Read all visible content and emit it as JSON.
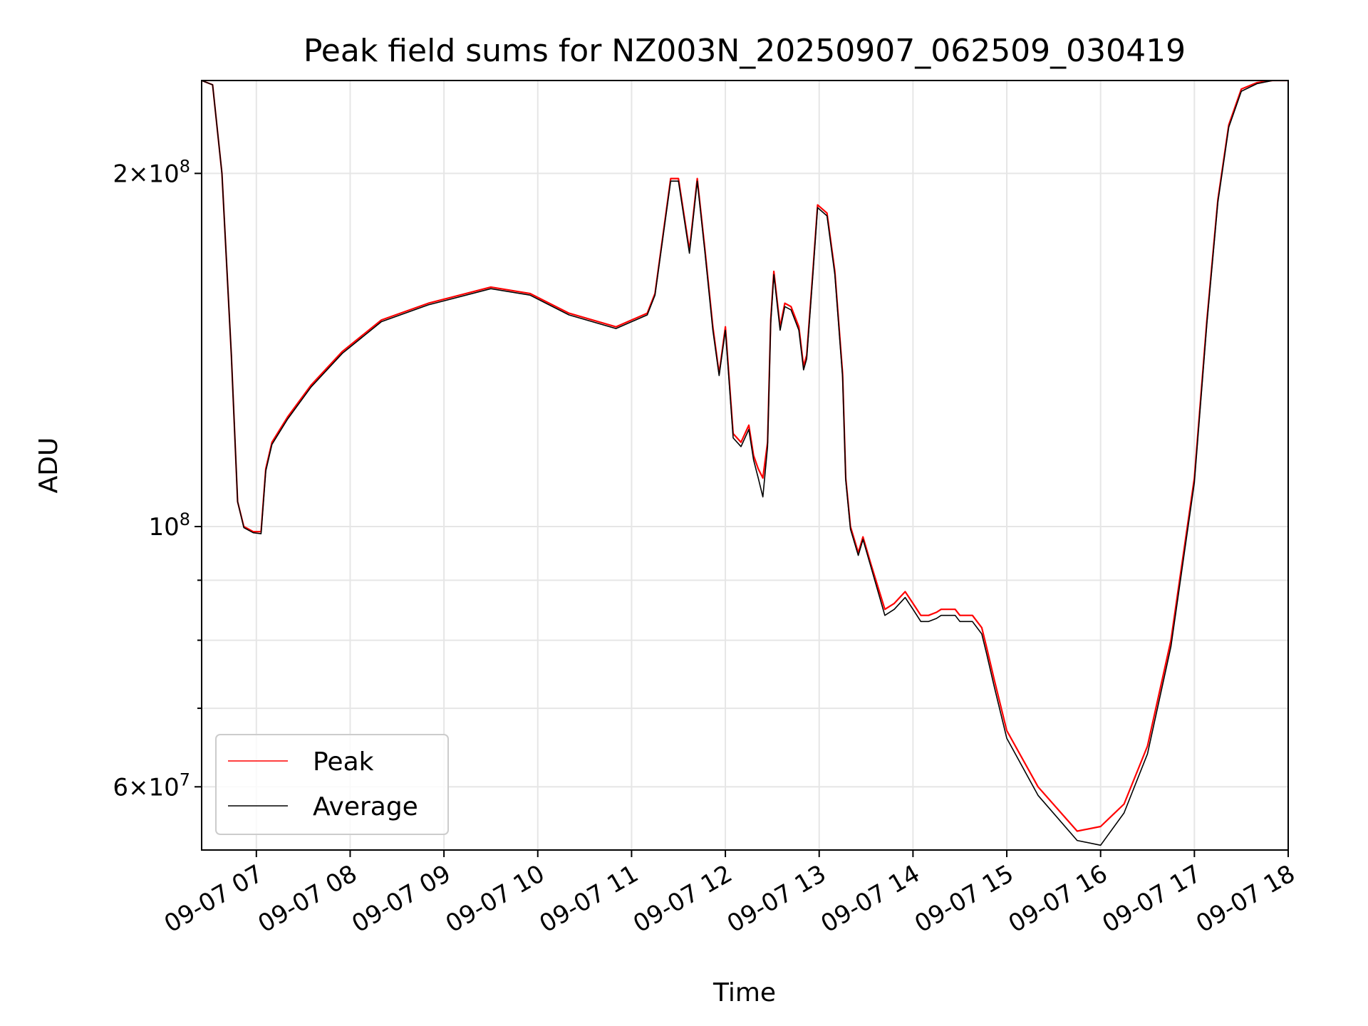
{
  "chart_data": {
    "type": "line",
    "title": "Peak field sums for NZ003N_20250907_062509_030419",
    "xlabel": "Time",
    "ylabel": "ADU",
    "x_scale": "time",
    "y_scale": "log",
    "xlim": [
      "2025-09-07 06:25",
      "2025-09-07 18:00"
    ],
    "ylim": [
      53000000,
      240000000
    ],
    "grid": true,
    "legend_position": "lower-left",
    "x_ticks": [
      "09-07 07",
      "09-07 08",
      "09-07 09",
      "09-07 10",
      "09-07 11",
      "09-07 12",
      "09-07 13",
      "09-07 14",
      "09-07 15",
      "09-07 16",
      "09-07 17",
      "09-07 18"
    ],
    "x_tick_values": [
      "2025-09-07 07:00",
      "2025-09-07 08:00",
      "2025-09-07 09:00",
      "2025-09-07 10:00",
      "2025-09-07 11:00",
      "2025-09-07 12:00",
      "2025-09-07 13:00",
      "2025-09-07 14:00",
      "2025-09-07 15:00",
      "2025-09-07 16:00",
      "2025-09-07 17:00",
      "2025-09-07 18:00"
    ],
    "y_major_ticks": [
      {
        "value": 200000000,
        "mantissa": "2",
        "base": "10",
        "exp": "8"
      },
      {
        "value": 100000000,
        "mantissa": "",
        "base": "10",
        "exp": "8"
      },
      {
        "value": 60000000,
        "mantissa": "6",
        "base": "10",
        "exp": "7"
      }
    ],
    "y_minor_ticks": [
      70000000,
      80000000,
      90000000
    ],
    "series": [
      {
        "name": "Peak",
        "color": "#ff0000",
        "x": [
          "2025-09-07 06:25",
          "2025-09-07 06:32",
          "2025-09-07 06:38",
          "2025-09-07 06:44",
          "2025-09-07 06:48",
          "2025-09-07 06:52",
          "2025-09-07 06:58",
          "2025-09-07 07:03",
          "2025-09-07 07:06",
          "2025-09-07 07:10",
          "2025-09-07 07:20",
          "2025-09-07 07:35",
          "2025-09-07 07:55",
          "2025-09-07 08:20",
          "2025-09-07 08:50",
          "2025-09-07 09:30",
          "2025-09-07 09:55",
          "2025-09-07 10:20",
          "2025-09-07 10:50",
          "2025-09-07 11:10",
          "2025-09-07 11:15",
          "2025-09-07 11:25",
          "2025-09-07 11:30",
          "2025-09-07 11:37",
          "2025-09-07 11:42",
          "2025-09-07 11:47",
          "2025-09-07 11:52",
          "2025-09-07 11:56",
          "2025-09-07 12:00",
          "2025-09-07 12:05",
          "2025-09-07 12:10",
          "2025-09-07 12:15",
          "2025-09-07 12:18",
          "2025-09-07 12:21",
          "2025-09-07 12:24",
          "2025-09-07 12:27",
          "2025-09-07 12:29",
          "2025-09-07 12:31",
          "2025-09-07 12:35",
          "2025-09-07 12:38",
          "2025-09-07 12:42",
          "2025-09-07 12:47",
          "2025-09-07 12:50",
          "2025-09-07 12:52",
          "2025-09-07 12:56",
          "2025-09-07 12:59",
          "2025-09-07 13:05",
          "2025-09-07 13:10",
          "2025-09-07 13:15",
          "2025-09-07 13:17",
          "2025-09-07 13:20",
          "2025-09-07 13:25",
          "2025-09-07 13:28",
          "2025-09-07 13:33",
          "2025-09-07 13:42",
          "2025-09-07 13:48",
          "2025-09-07 13:55",
          "2025-09-07 14:00",
          "2025-09-07 14:05",
          "2025-09-07 14:10",
          "2025-09-07 14:15",
          "2025-09-07 14:18",
          "2025-09-07 14:22",
          "2025-09-07 14:27",
          "2025-09-07 14:30",
          "2025-09-07 14:38",
          "2025-09-07 14:44",
          "2025-09-07 14:47",
          "2025-09-07 14:52",
          "2025-09-07 15:00",
          "2025-09-07 15:20",
          "2025-09-07 15:45",
          "2025-09-07 16:00",
          "2025-09-07 16:15",
          "2025-09-07 16:30",
          "2025-09-07 16:45",
          "2025-09-07 17:00",
          "2025-09-07 17:08",
          "2025-09-07 17:15",
          "2025-09-07 17:22",
          "2025-09-07 17:30",
          "2025-09-07 17:40",
          "2025-09-07 17:50",
          "2025-09-07 17:55",
          "2025-09-07 18:00"
        ],
        "y": [
          240000000,
          238000000,
          200000000,
          140000000,
          105000000,
          100000000,
          99000000,
          99000000,
          112000000,
          118000000,
          124000000,
          132000000,
          141000000,
          150000000,
          155000000,
          160000000,
          158000000,
          152000000,
          148000000,
          152000000,
          158000000,
          198000000,
          198000000,
          172000000,
          198000000,
          172000000,
          148000000,
          135000000,
          148000000,
          120000000,
          118000000,
          122000000,
          115000000,
          112000000,
          110000000,
          118000000,
          150000000,
          165000000,
          148000000,
          155000000,
          154000000,
          148000000,
          137000000,
          140000000,
          165000000,
          188000000,
          185000000,
          165000000,
          135000000,
          110000000,
          100000000,
          95000000,
          98000000,
          93000000,
          85000000,
          86000000,
          88000000,
          86000000,
          84000000,
          84000000,
          84500000,
          85000000,
          85000000,
          85000000,
          84000000,
          84000000,
          82000000,
          79000000,
          74000000,
          67000000,
          60000000,
          55000000,
          55500000,
          58000000,
          65000000,
          80000000,
          110000000,
          150000000,
          190000000,
          220000000,
          236000000,
          239000000,
          240000000,
          240000000,
          240000000
        ]
      },
      {
        "name": "Average",
        "color": "#000000",
        "x": [
          "2025-09-07 06:25",
          "2025-09-07 06:32",
          "2025-09-07 06:38",
          "2025-09-07 06:44",
          "2025-09-07 06:48",
          "2025-09-07 06:52",
          "2025-09-07 06:58",
          "2025-09-07 07:03",
          "2025-09-07 07:06",
          "2025-09-07 07:10",
          "2025-09-07 07:20",
          "2025-09-07 07:35",
          "2025-09-07 07:55",
          "2025-09-07 08:20",
          "2025-09-07 08:50",
          "2025-09-07 09:30",
          "2025-09-07 09:55",
          "2025-09-07 10:20",
          "2025-09-07 10:50",
          "2025-09-07 11:10",
          "2025-09-07 11:15",
          "2025-09-07 11:25",
          "2025-09-07 11:30",
          "2025-09-07 11:37",
          "2025-09-07 11:42",
          "2025-09-07 11:47",
          "2025-09-07 11:52",
          "2025-09-07 11:56",
          "2025-09-07 12:00",
          "2025-09-07 12:05",
          "2025-09-07 12:10",
          "2025-09-07 12:15",
          "2025-09-07 12:18",
          "2025-09-07 12:21",
          "2025-09-07 12:24",
          "2025-09-07 12:27",
          "2025-09-07 12:29",
          "2025-09-07 12:31",
          "2025-09-07 12:35",
          "2025-09-07 12:38",
          "2025-09-07 12:42",
          "2025-09-07 12:47",
          "2025-09-07 12:50",
          "2025-09-07 12:52",
          "2025-09-07 12:56",
          "2025-09-07 12:59",
          "2025-09-07 13:05",
          "2025-09-07 13:10",
          "2025-09-07 13:15",
          "2025-09-07 13:17",
          "2025-09-07 13:20",
          "2025-09-07 13:25",
          "2025-09-07 13:28",
          "2025-09-07 13:33",
          "2025-09-07 13:42",
          "2025-09-07 13:48",
          "2025-09-07 13:55",
          "2025-09-07 14:00",
          "2025-09-07 14:05",
          "2025-09-07 14:10",
          "2025-09-07 14:15",
          "2025-09-07 14:18",
          "2025-09-07 14:22",
          "2025-09-07 14:27",
          "2025-09-07 14:30",
          "2025-09-07 14:38",
          "2025-09-07 14:44",
          "2025-09-07 14:47",
          "2025-09-07 14:52",
          "2025-09-07 15:00",
          "2025-09-07 15:20",
          "2025-09-07 15:45",
          "2025-09-07 16:00",
          "2025-09-07 16:15",
          "2025-09-07 16:30",
          "2025-09-07 16:45",
          "2025-09-07 17:00",
          "2025-09-07 17:08",
          "2025-09-07 17:15",
          "2025-09-07 17:22",
          "2025-09-07 17:30",
          "2025-09-07 17:40",
          "2025-09-07 17:50",
          "2025-09-07 17:55",
          "2025-09-07 18:00"
        ],
        "y": [
          240000000,
          238000000,
          200000000,
          140000000,
          105000000,
          99800000,
          98800000,
          98600000,
          111500000,
          117500000,
          123500000,
          131500000,
          140500000,
          149500000,
          154500000,
          159500000,
          157500000,
          151500000,
          147500000,
          151500000,
          157500000,
          197000000,
          197000000,
          171000000,
          197000000,
          171000000,
          147000000,
          134500000,
          147000000,
          119000000,
          117000000,
          121000000,
          114000000,
          110000000,
          106000000,
          117000000,
          149000000,
          164000000,
          147000000,
          154000000,
          153000000,
          147000000,
          136000000,
          139000000,
          164000000,
          187000000,
          184000000,
          164000000,
          134000000,
          109500000,
          99500000,
          94500000,
          97500000,
          92500000,
          84000000,
          85000000,
          87000000,
          85000000,
          83000000,
          83000000,
          83500000,
          84000000,
          84000000,
          84000000,
          83000000,
          83000000,
          81000000,
          78000000,
          73000000,
          66000000,
          59000000,
          54000000,
          53500000,
          57000000,
          64000000,
          79000000,
          109000000,
          149000000,
          189000000,
          219000000,
          235000000,
          238500000,
          240000000,
          240000000,
          240000000
        ]
      }
    ]
  }
}
